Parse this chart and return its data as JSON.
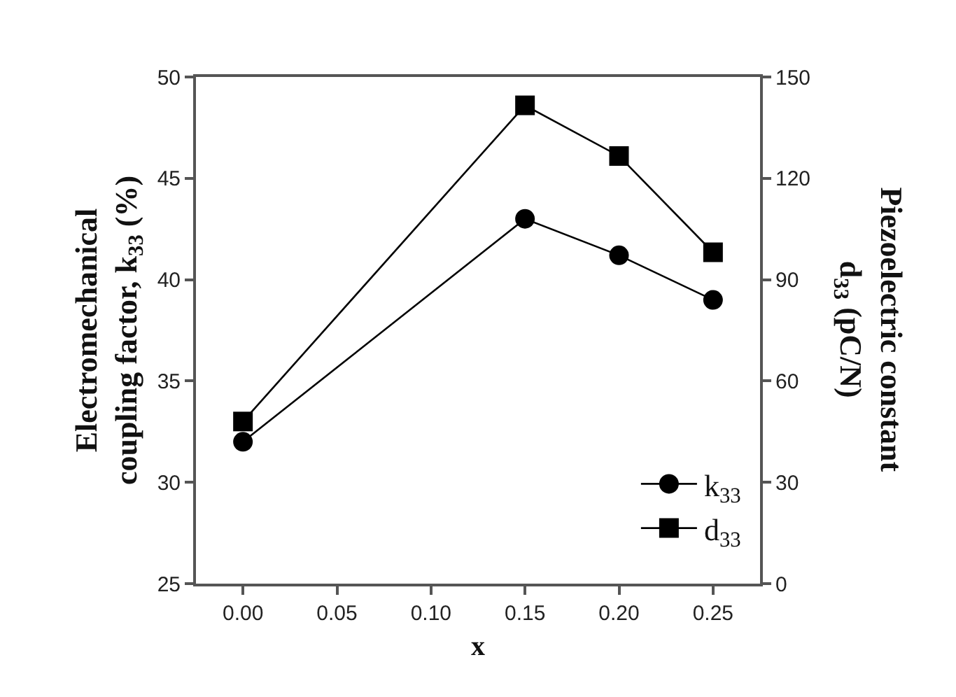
{
  "chart_data": {
    "type": "line",
    "xlabel": "x",
    "ylabel": "Electromechanical\ncoupling factor, k$_{33}$ (%)",
    "y2label": "Piezoelectric constant\nd$_{33}$ (pC/N)",
    "x": [
      0.0,
      0.15,
      0.2,
      0.25
    ],
    "series": [
      {
        "name": "k$_{33}$",
        "color": "#000000",
        "marker": "circle",
        "values": [
          32,
          43,
          41.2,
          39
        ]
      },
      {
        "name": "d$_{33}$",
        "color": "#000000",
        "marker": "square",
        "axis": "y2",
        "values": [
          48,
          141.6,
          126.6,
          98.1
        ]
      }
    ],
    "xlim": [
      -0.025,
      0.275
    ],
    "xticks": [
      {
        "value": 0.0,
        "label": "0.00"
      },
      {
        "value": 0.05,
        "label": "0.05"
      },
      {
        "value": 0.1,
        "label": "0.10"
      },
      {
        "value": 0.15,
        "label": "0.15"
      },
      {
        "value": 0.2,
        "label": "0.20"
      },
      {
        "value": 0.25,
        "label": "0.25"
      }
    ],
    "ylim": [
      25,
      50
    ],
    "yticks": [
      25,
      30,
      35,
      40,
      45,
      50
    ],
    "y2lim": [
      0,
      150
    ],
    "y2ticks": [
      0,
      30,
      60,
      90,
      120,
      150
    ],
    "legend": "bottom right",
    "line_style": "solid"
  }
}
